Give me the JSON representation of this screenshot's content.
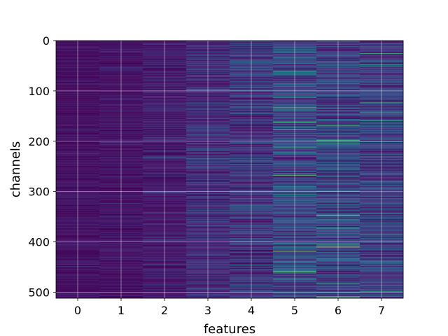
{
  "chart_data": {
    "type": "heatmap",
    "title": "",
    "xlabel": "features",
    "ylabel": "channels",
    "x_categories": [
      "0",
      "1",
      "2",
      "3",
      "4",
      "5",
      "6",
      "7"
    ],
    "xticks": [
      0,
      1,
      2,
      3,
      4,
      5,
      6,
      7
    ],
    "yticks": [
      0,
      100,
      200,
      300,
      400,
      500
    ],
    "ylim": [
      512,
      0
    ],
    "rows": 512,
    "columns": 8,
    "colormap": "viridis",
    "grid": true,
    "colorbar": false,
    "column_intensity": [
      0.06,
      0.07,
      0.1,
      0.16,
      0.2,
      0.28,
      0.26,
      0.24
    ],
    "column_variability": [
      0.06,
      0.07,
      0.09,
      0.13,
      0.17,
      0.22,
      0.22,
      0.2
    ],
    "hot_spots": [
      {
        "feature": 3,
        "channel": 102,
        "value": 0.55
      },
      {
        "feature": 3,
        "channel": 205,
        "value": 0.62
      },
      {
        "feature": 4,
        "channel": 42,
        "value": 0.55
      },
      {
        "feature": 5,
        "channel": 177,
        "value": 0.92
      },
      {
        "feature": 5,
        "channel": 458,
        "value": 0.72
      },
      {
        "feature": 6,
        "channel": 410,
        "value": 0.98
      },
      {
        "feature": 6,
        "channel": 298,
        "value": 0.55
      },
      {
        "feature": 7,
        "channel": 200,
        "value": 0.6
      },
      {
        "feature": 7,
        "channel": 232,
        "value": 0.55
      }
    ]
  },
  "colors": {
    "background": "#ffffff",
    "grid": "#ffffff",
    "text": "#000000",
    "spine": "#000000"
  }
}
